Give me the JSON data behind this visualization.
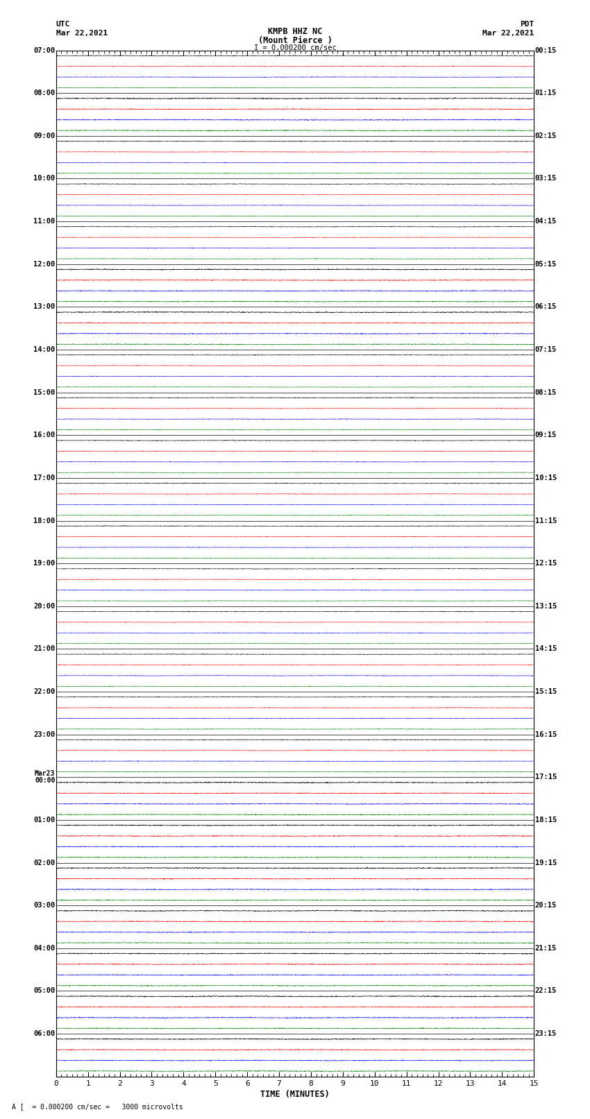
{
  "title_line1": "KMPB HHZ NC",
  "title_line2": "(Mount Pierce )",
  "scale_text": "I = 0.000200 cm/sec",
  "left_header": "UTC",
  "left_date": "Mar 22,2021",
  "right_header": "PDT",
  "right_date": "Mar 22,2021",
  "xlabel": "TIME (MINUTES)",
  "bottom_note": "A [  = 0.000200 cm/sec =   3000 microvolts",
  "xmin": 0,
  "xmax": 15,
  "xticks": [
    0,
    1,
    2,
    3,
    4,
    5,
    6,
    7,
    8,
    9,
    10,
    11,
    12,
    13,
    14,
    15
  ],
  "num_hour_rows": 24,
  "traces_per_hour": 4,
  "trace_colors": [
    "black",
    "red",
    "blue",
    "green"
  ],
  "bg_color": "white",
  "utc_labels": [
    "07:00",
    "08:00",
    "09:00",
    "10:00",
    "11:00",
    "12:00",
    "13:00",
    "14:00",
    "15:00",
    "16:00",
    "17:00",
    "18:00",
    "19:00",
    "20:00",
    "21:00",
    "22:00",
    "23:00",
    "Mar23\n00:00",
    "01:00",
    "02:00",
    "03:00",
    "04:00",
    "05:00",
    "06:00"
  ],
  "pdt_labels": [
    "00:15",
    "01:15",
    "02:15",
    "03:15",
    "04:15",
    "05:15",
    "06:15",
    "07:15",
    "08:15",
    "09:15",
    "10:15",
    "11:15",
    "12:15",
    "13:15",
    "14:15",
    "15:15",
    "16:15",
    "17:15",
    "18:15",
    "19:15",
    "20:15",
    "21:15",
    "22:15",
    "23:15"
  ]
}
